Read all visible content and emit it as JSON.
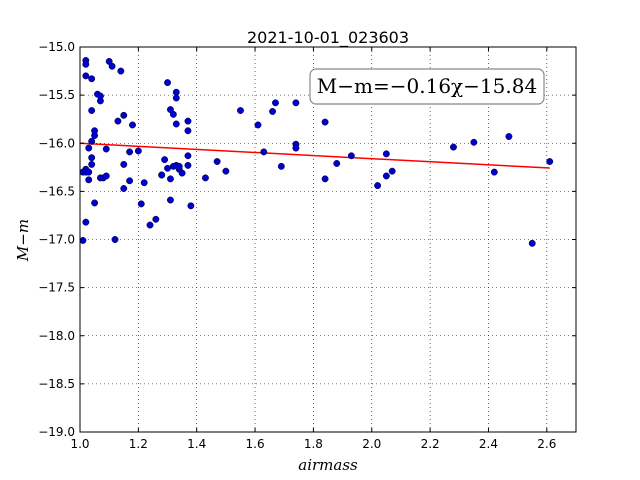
{
  "chart_data": {
    "type": "scatter",
    "title": "2021-10-01_023603",
    "xlabel": "airmass",
    "ylabel": "M−m",
    "xlim": [
      1.0,
      2.7
    ],
    "ylim": [
      -19.0,
      -15.0
    ],
    "y_inverted": true,
    "grid": true,
    "x_ticks": [
      "1.0",
      "1.2",
      "1.4",
      "1.6",
      "1.8",
      "2.0",
      "2.2",
      "2.4",
      "2.6"
    ],
    "y_ticks": [
      "−15.0",
      "−15.5",
      "−16.0",
      "−16.5",
      "−17.0",
      "−17.5",
      "−18.0",
      "−18.5",
      "−19.0"
    ],
    "annotation": "M−m=−0.16χ−15.84",
    "fit": {
      "slope": -0.16,
      "intercept": -15.84,
      "color": "#ff0000",
      "x_range": [
        1.0,
        2.61
      ]
    },
    "point_color": "#0000cc",
    "points": [
      [
        1.01,
        -17.01
      ],
      [
        1.02,
        -16.82
      ],
      [
        1.01,
        -16.3
      ],
      [
        1.02,
        -16.27
      ],
      [
        1.02,
        -16.3
      ],
      [
        1.03,
        -16.3
      ],
      [
        1.03,
        -16.38
      ],
      [
        1.02,
        -15.14
      ],
      [
        1.02,
        -15.18
      ],
      [
        1.02,
        -15.3
      ],
      [
        1.04,
        -15.33
      ],
      [
        1.05,
        -16.62
      ],
      [
        1.03,
        -16.05
      ],
      [
        1.04,
        -16.15
      ],
      [
        1.04,
        -16.22
      ],
      [
        1.04,
        -15.98
      ],
      [
        1.05,
        -15.92
      ],
      [
        1.05,
        -15.87
      ],
      [
        1.04,
        -15.66
      ],
      [
        1.06,
        -15.49
      ],
      [
        1.07,
        -15.51
      ],
      [
        1.07,
        -15.56
      ],
      [
        1.07,
        -16.36
      ],
      [
        1.08,
        -16.36
      ],
      [
        1.09,
        -16.34
      ],
      [
        1.09,
        -16.06
      ],
      [
        1.1,
        -15.15
      ],
      [
        1.11,
        -15.2
      ],
      [
        1.12,
        -17.0
      ],
      [
        1.13,
        -15.77
      ],
      [
        1.14,
        -15.25
      ],
      [
        1.15,
        -15.71
      ],
      [
        1.15,
        -16.47
      ],
      [
        1.15,
        -16.22
      ],
      [
        1.17,
        -16.39
      ],
      [
        1.17,
        -16.09
      ],
      [
        1.18,
        -15.81
      ],
      [
        1.2,
        -16.08
      ],
      [
        1.21,
        -16.63
      ],
      [
        1.22,
        -16.41
      ],
      [
        1.24,
        -16.85
      ],
      [
        1.26,
        -16.79
      ],
      [
        1.28,
        -16.33
      ],
      [
        1.28,
        -16.33
      ],
      [
        1.29,
        -16.17
      ],
      [
        1.3,
        -16.26
      ],
      [
        1.3,
        -15.37
      ],
      [
        1.31,
        -15.65
      ],
      [
        1.32,
        -15.7
      ],
      [
        1.31,
        -16.37
      ],
      [
        1.31,
        -16.59
      ],
      [
        1.32,
        -16.24
      ],
      [
        1.33,
        -16.23
      ],
      [
        1.33,
        -15.47
      ],
      [
        1.33,
        -15.53
      ],
      [
        1.33,
        -15.8
      ],
      [
        1.34,
        -16.27
      ],
      [
        1.34,
        -16.24
      ],
      [
        1.35,
        -16.31
      ],
      [
        1.37,
        -16.13
      ],
      [
        1.37,
        -16.23
      ],
      [
        1.37,
        -15.77
      ],
      [
        1.37,
        -15.87
      ],
      [
        1.38,
        -16.65
      ],
      [
        1.43,
        -16.36
      ],
      [
        1.47,
        -16.19
      ],
      [
        1.5,
        -16.29
      ],
      [
        1.55,
        -15.66
      ],
      [
        1.61,
        -15.81
      ],
      [
        1.63,
        -16.09
      ],
      [
        1.66,
        -15.67
      ],
      [
        1.67,
        -15.58
      ],
      [
        1.69,
        -16.24
      ],
      [
        1.74,
        -15.58
      ],
      [
        1.74,
        -16.01
      ],
      [
        1.74,
        -16.05
      ],
      [
        1.84,
        -16.37
      ],
      [
        1.84,
        -15.78
      ],
      [
        1.88,
        -16.21
      ],
      [
        1.93,
        -16.13
      ],
      [
        2.02,
        -16.44
      ],
      [
        2.05,
        -16.11
      ],
      [
        2.05,
        -16.34
      ],
      [
        2.07,
        -16.29
      ],
      [
        2.28,
        -16.04
      ],
      [
        2.35,
        -15.99
      ],
      [
        2.42,
        -16.3
      ],
      [
        2.47,
        -15.93
      ],
      [
        2.55,
        -17.04
      ],
      [
        2.61,
        -16.19
      ]
    ]
  }
}
